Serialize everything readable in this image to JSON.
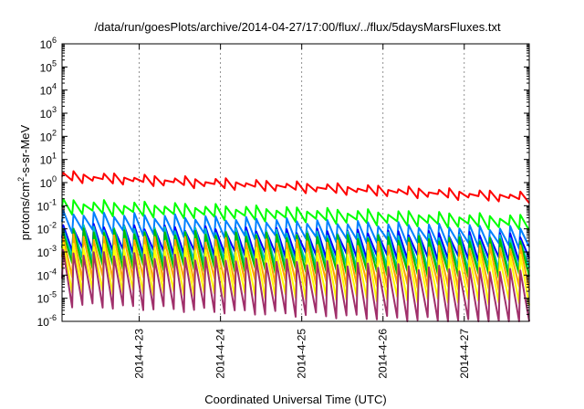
{
  "chart_data": {
    "type": "line",
    "title": "/data/run/goesPlots/archive/2014-04-27/17:00/flux/../flux/5daysMarsFluxes.txt",
    "xlabel": "Coordinated Universal Time (UTC)",
    "ylabel_parts": [
      "protons/cm",
      "2",
      "-s-sr-MeV"
    ],
    "x_tick_labels": [
      "2014-4-23",
      "2014-4-24",
      "2014-4-25",
      "2014-4-26",
      "2014-4-27"
    ],
    "x_tick_positions_days": [
      1,
      2,
      3,
      4,
      5
    ],
    "xlim_days": [
      0.05,
      5.8
    ],
    "y_scale": "log",
    "ylim": [
      1e-06,
      1000000.0
    ],
    "y_tick_exponents": [
      -6,
      -5,
      -4,
      -3,
      -2,
      -1,
      0,
      1,
      2,
      3,
      4,
      5,
      6
    ],
    "y_tick_base": "10",
    "grid": "vertical-dashed",
    "oscillation_period_days": 0.125,
    "series": [
      {
        "color": "#ff0000",
        "start": 1.8,
        "end": 0.22,
        "swing": 1.45
      },
      {
        "color": "#00ff00",
        "start": 0.09,
        "end": 0.018,
        "swing": 1.8
      },
      {
        "color": "#0080ff",
        "start": 0.02,
        "end": 0.004,
        "swing": 2.5
      },
      {
        "color": "#0000ff",
        "start": 0.004,
        "end": 0.0015,
        "swing": 3.5
      },
      {
        "color": "#00c0c0",
        "start": 0.0025,
        "end": 0.0008,
        "swing": 5
      },
      {
        "color": "#00c000",
        "start": 0.0015,
        "end": 0.0005,
        "swing": 6
      },
      {
        "color": "#ffa500",
        "start": 0.0006,
        "end": 0.0002,
        "swing": 8
      },
      {
        "color": "#ffff00",
        "start": 0.0002,
        "end": 6e-05,
        "swing": 10
      },
      {
        "color": "#a0306b",
        "start": 7e-05,
        "end": 1e-05,
        "swing": 14
      }
    ]
  }
}
